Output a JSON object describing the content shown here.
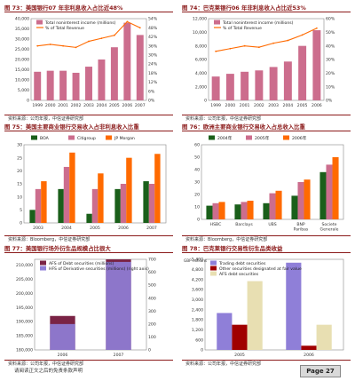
{
  "colors": {
    "pink": "#cc6d8d",
    "orange": "#ff6a00",
    "dark_red": "#8b1a1a",
    "green": "#1a5f1a",
    "purple": "#8f7fd8",
    "khaki": "#e8dfb2",
    "maroon": "#7a2345",
    "darkred": "#a00000"
  },
  "panels": [
    {
      "title": "图 73：美国银行07 年非利息收入占比近48%",
      "source": "资料来源：公司年报，中信证券研究部"
    },
    {
      "title": "图 74：巴克莱银行06 年非利息收入占比近53%",
      "source": "资料来源：公司年报，中信证券研究部"
    },
    {
      "title": "图 75：美国主要商业银行交易收入占非利息收入比重",
      "source": "资料来源：Bloomberg，中信证券研究部"
    },
    {
      "title": "图 76：欧洲主要商业银行交易收入占总收入比重",
      "source": "资料来源：Bloomberg，中信证券研究部"
    },
    {
      "title": "图 77：美国银行场外衍生品规模占比很大",
      "source": "资料来源：公司年报，中信证券研究部"
    },
    {
      "title": "图 78：巴克莱银行交易性衍生品类收益",
      "source": "资料来源：公司年报，中信证券研究部"
    }
  ],
  "footer": {
    "text": "请阅读正文之后的免责条款声明",
    "page": "Page 27"
  },
  "chart_data": [
    {
      "type": "bar",
      "categories": [
        "1999",
        "2000",
        "2001",
        "2002",
        "2003",
        "2004",
        "2005",
        "2006",
        "2007"
      ],
      "series": [
        {
          "name": "Total noninterest income (millions)",
          "kind": "bar",
          "axis": "left",
          "values": [
            14000,
            14500,
            14500,
            13500,
            16500,
            20000,
            26000,
            38000,
            32000
          ]
        },
        {
          "name": "% of Total Revenue",
          "kind": "line",
          "axis": "right",
          "values": [
            36,
            37,
            36,
            35,
            39,
            41,
            43,
            52,
            48
          ]
        }
      ],
      "ylim_left": [
        0,
        40000
      ],
      "ylim_right": [
        0,
        54
      ],
      "yticks_left": [
        "0",
        "5,000",
        "10,000",
        "15,000",
        "20,000",
        "25,000",
        "30,000",
        "35,000",
        "40,000"
      ],
      "yticks_right": [
        "0%",
        "6%",
        "12%",
        "18%",
        "24%",
        "30%",
        "36%",
        "42%",
        "48%",
        "54%"
      ],
      "ytick_values_right": [
        0,
        6,
        12,
        18,
        24,
        30,
        36,
        42,
        48,
        54
      ]
    },
    {
      "type": "bar",
      "categories": [
        "1999",
        "2000",
        "2001",
        "2002",
        "2003",
        "2004",
        "2005",
        "2006"
      ],
      "series": [
        {
          "name": "Total noninterest income (millions)",
          "kind": "bar",
          "axis": "left",
          "values": [
            3500,
            3900,
            4200,
            4400,
            4900,
            5700,
            8000,
            10300
          ]
        },
        {
          "name": "% of Total Revenue",
          "kind": "line",
          "axis": "right",
          "values": [
            36,
            38,
            40,
            39,
            42,
            44,
            48,
            53
          ]
        }
      ],
      "ylim_left": [
        0,
        12000
      ],
      "ylim_right": [
        0,
        60
      ],
      "yticks_left": [
        "0",
        "2,000",
        "4,000",
        "6,000",
        "8,000",
        "10,000",
        "12,000"
      ],
      "yticks_right": [
        "0%",
        "10%",
        "20%",
        "30%",
        "40%",
        "50%",
        "60%"
      ],
      "ytick_values_right": [
        0,
        10,
        20,
        30,
        40,
        50,
        60
      ]
    },
    {
      "type": "bar",
      "categories": [
        "BOA",
        "Citigroup",
        "JP Morgan"
      ],
      "x": [
        "2003",
        "2004",
        "2005",
        "2006",
        "2007"
      ],
      "series": [
        {
          "name": "BOA",
          "values": [
            5,
            13,
            3.5,
            13,
            16
          ]
        },
        {
          "name": "Citigroup",
          "values": [
            13,
            21.5,
            13,
            15,
            15
          ]
        },
        {
          "name": "JP Morgan",
          "values": [
            16,
            27,
            19,
            25,
            26.5
          ]
        }
      ],
      "ylim": [
        0,
        30
      ],
      "yticks": [
        "0",
        "5",
        "10",
        "15",
        "20",
        "25",
        "30"
      ]
    },
    {
      "type": "bar",
      "categories": [
        "HSBC",
        "Barclays",
        "UBS",
        "BNP Paribas",
        "Societe Generale"
      ],
      "series": [
        {
          "name": "2004年",
          "values": [
            11,
            12,
            13,
            19,
            38
          ]
        },
        {
          "name": "2005年",
          "values": [
            13,
            14,
            21,
            30,
            44
          ]
        },
        {
          "name": "2006年",
          "values": [
            14,
            15,
            23,
            32,
            50
          ]
        }
      ],
      "ylim": [
        0,
        60
      ],
      "yticks": [
        "0",
        "10",
        "20",
        "30",
        "40",
        "50",
        "60"
      ]
    },
    {
      "type": "bar",
      "categories": [
        "2006",
        "2007"
      ],
      "series": [
        {
          "name": "AFS of Debt securities (millions)",
          "kind": "bar",
          "axis": "left",
          "values": [
            192000,
            212000
          ]
        },
        {
          "name": "HFS of Derivative securities (millions) (right axis)",
          "kind": "bar",
          "axis": "right",
          "values": [
            200,
            680
          ]
        }
      ],
      "ylim_left": [
        180000,
        212000
      ],
      "ylim_right": [
        0,
        700
      ],
      "yticks_left": [
        "180,000",
        "185,000",
        "190,000",
        "195,000",
        "200,000",
        "205,000",
        "210,000"
      ],
      "ytick_values_left": [
        180000,
        185000,
        190000,
        195000,
        200000,
        205000,
        210000
      ],
      "yticks_right": [
        "0",
        "100",
        "200",
        "300",
        "400",
        "500",
        "600",
        "700"
      ]
    },
    {
      "type": "bar",
      "categories": [
        "2005",
        "2006"
      ],
      "series": [
        {
          "name": "Trading debt securities",
          "values": [
            2200,
            5200
          ]
        },
        {
          "name": "Other securities designated at fair value",
          "values": [
            1500,
            250
          ]
        },
        {
          "name": "AFS debt securities",
          "values": [
            4100,
            1500
          ]
        }
      ],
      "ylim": [
        0,
        5400
      ],
      "yticks": [
        "0",
        "600",
        "1,200",
        "1,800",
        "2,400",
        "3,000",
        "3,600",
        "4,200",
        "4,800",
        "5,400"
      ],
      "ylabel_unit": "GBP millions"
    }
  ]
}
